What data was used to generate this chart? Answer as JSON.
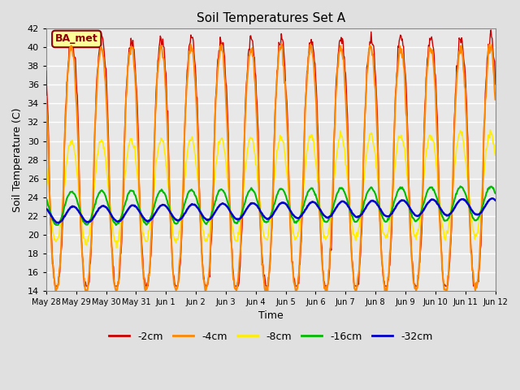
{
  "title": "Soil Temperatures Set A",
  "xlabel": "Time",
  "ylabel": "Soil Temperature (C)",
  "ylim": [
    14,
    42
  ],
  "n_days": 15,
  "bg_color": "#e0e0e0",
  "plot_bg_color": "#e8e8e8",
  "grid_color": "#ffffff",
  "annotation_text": "BA_met",
  "annotation_bg": "#ffff99",
  "annotation_border": "#8b0000",
  "legend_entries": [
    "-2cm",
    "-4cm",
    "-8cm",
    "-16cm",
    "-32cm"
  ],
  "line_colors": [
    "#cc0000",
    "#ff8800",
    "#ffee00",
    "#00bb00",
    "#0000cc"
  ],
  "line_widths": [
    1.0,
    1.5,
    1.2,
    1.5,
    1.8
  ],
  "tick_labels": [
    "May 28",
    "May 29",
    "May 30",
    "May 31",
    "Jun 1",
    "Jun 2",
    "Jun 3",
    "Jun 4",
    "Jun 5",
    "Jun 6",
    "Jun 7",
    "Jun 8",
    "Jun 9",
    "Jun 10",
    "Jun 11",
    "Jun 12"
  ]
}
